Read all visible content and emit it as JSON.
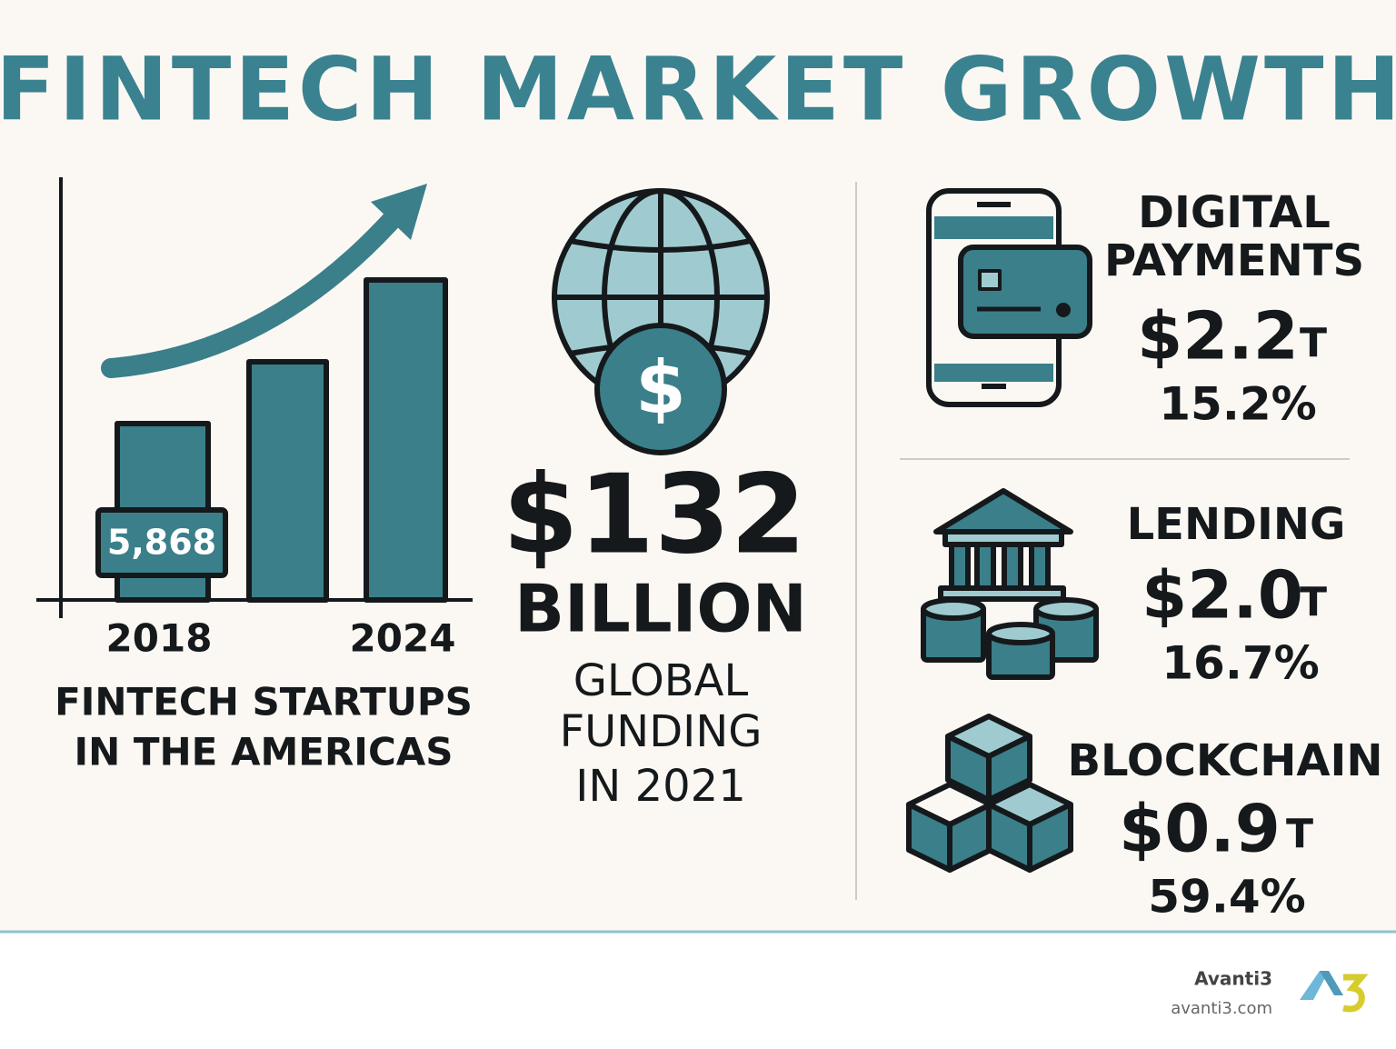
{
  "header": {
    "title": "FINTECH MARKET GROWTH"
  },
  "startups": {
    "badge": "5,868",
    "years": [
      "2018",
      "2024"
    ],
    "caption": [
      "FINTECH STARTUPS",
      "IN THE AMERICAS"
    ]
  },
  "funding": {
    "amount": "$132",
    "unit": "BILLION",
    "caption": [
      "GLOBAL",
      "FUNDING",
      "IN 2021"
    ]
  },
  "segments": [
    {
      "name": [
        "DIGITAL",
        "PAYMENTS"
      ],
      "value": "$2.2",
      "unit": "T",
      "growth": "15.2%"
    },
    {
      "name": [
        "LENDING"
      ],
      "value": "$2.0",
      "unit": "T",
      "growth": "16.7%"
    },
    {
      "name": [
        "BLOCKCHAIN"
      ],
      "value": "$0.9",
      "unit": "T",
      "growth": "59.4%"
    }
  ],
  "footer": {
    "brand": "Avanti3",
    "url": "avanti3.com"
  }
}
